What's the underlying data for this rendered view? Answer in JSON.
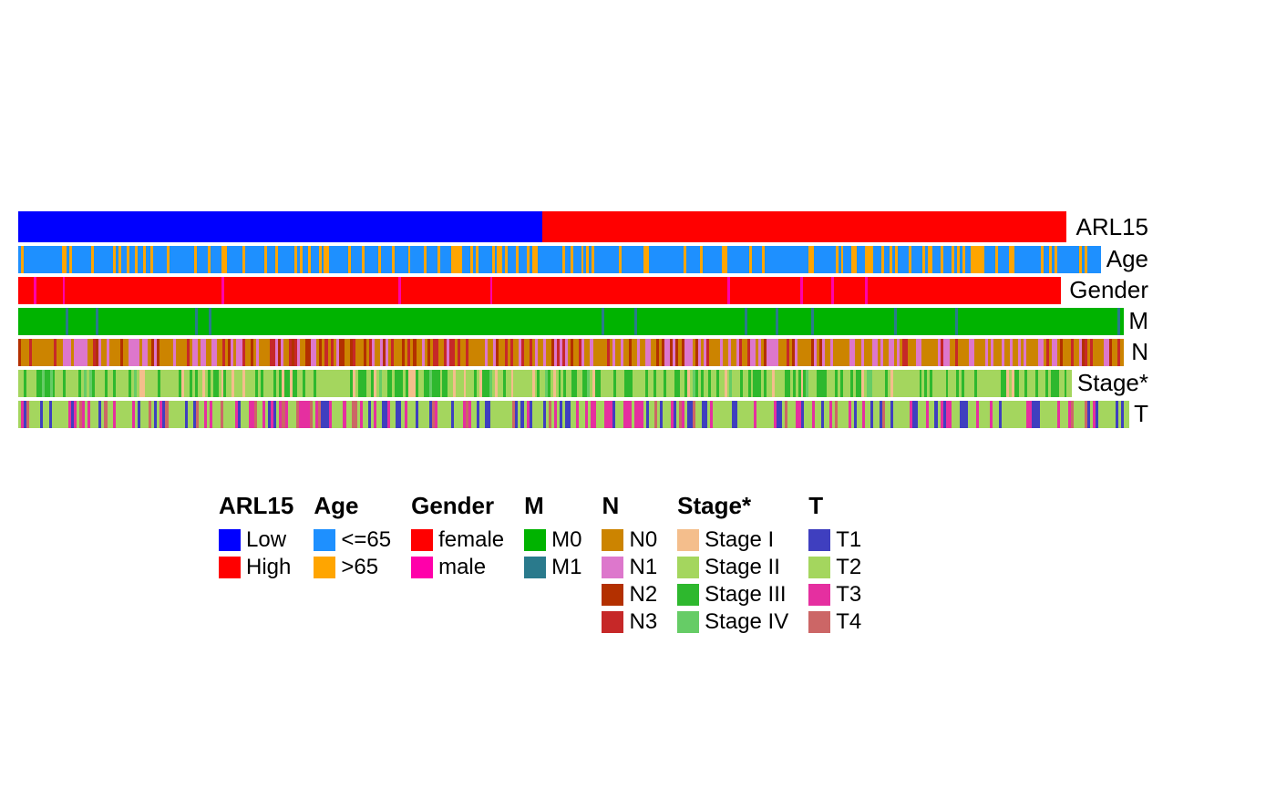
{
  "chart": {
    "type": "heatmap-annotation",
    "n_samples": 400,
    "background_color": "#ffffff",
    "track_label_fontsize": 26,
    "legend_head_fontsize": 26,
    "legend_label_fontsize": 24,
    "tracks": [
      {
        "key": "ARL15",
        "label": "ARL15",
        "height": "tall",
        "categories": {
          "Low": "#0000ff",
          "High": "#ff0000"
        },
        "pattern": "sorted_half"
      },
      {
        "key": "Age",
        "label": "Age",
        "height": "short",
        "categories": {
          "<=65": "#1e90ff",
          ">65": "#ffa500"
        },
        "probs": [
          0.72,
          0.28
        ]
      },
      {
        "key": "Gender",
        "label": "Gender",
        "height": "short",
        "categories": {
          "female": "#ff0000",
          "male": "#ff00aa"
        },
        "probs": [
          0.97,
          0.03
        ]
      },
      {
        "key": "M",
        "label": "M",
        "height": "short",
        "categories": {
          "M0": "#00b300",
          "M1": "#2a7a8c"
        },
        "probs": [
          0.97,
          0.03
        ]
      },
      {
        "key": "N",
        "label": "N",
        "height": "short",
        "categories": {
          "N0": "#cc8400",
          "N1": "#dd77cc",
          "N2": "#b33000",
          "N3": "#c62828"
        },
        "probs": [
          0.5,
          0.3,
          0.1,
          0.1
        ]
      },
      {
        "key": "Stage",
        "label": "Stage*",
        "height": "short",
        "categories": {
          "Stage I": "#f4be8c",
          "Stage II": "#a4d65e",
          "Stage III": "#2eb82e",
          "Stage IV": "#66cc66"
        },
        "probs": [
          0.06,
          0.6,
          0.3,
          0.04
        ]
      },
      {
        "key": "T",
        "label": "T",
        "height": "short",
        "categories": {
          "T1": "#3f3fbf",
          "T2": "#a4d65e",
          "T3": "#e52fa0",
          "T4": "#cc6666"
        },
        "probs": [
          0.2,
          0.55,
          0.17,
          0.08
        ]
      }
    ],
    "legend": [
      {
        "title": "ARL15",
        "items": [
          {
            "label": "Low",
            "color": "#0000ff"
          },
          {
            "label": "High",
            "color": "#ff0000"
          }
        ]
      },
      {
        "title": "Age",
        "items": [
          {
            "label": "<=65",
            "color": "#1e90ff"
          },
          {
            "label": ">65",
            "color": "#ffa500"
          }
        ]
      },
      {
        "title": "Gender",
        "items": [
          {
            "label": "female",
            "color": "#ff0000"
          },
          {
            "label": "male",
            "color": "#ff00aa"
          }
        ]
      },
      {
        "title": "M",
        "items": [
          {
            "label": "M0",
            "color": "#00b300"
          },
          {
            "label": "M1",
            "color": "#2a7a8c"
          }
        ]
      },
      {
        "title": "N",
        "items": [
          {
            "label": "N0",
            "color": "#cc8400"
          },
          {
            "label": "N1",
            "color": "#dd77cc"
          },
          {
            "label": "N2",
            "color": "#b33000"
          },
          {
            "label": "N3",
            "color": "#c62828"
          }
        ]
      },
      {
        "title": "Stage*",
        "items": [
          {
            "label": "Stage I",
            "color": "#f4be8c"
          },
          {
            "label": "Stage II",
            "color": "#a4d65e"
          },
          {
            "label": "Stage III",
            "color": "#2eb82e"
          },
          {
            "label": "Stage IV",
            "color": "#66cc66"
          }
        ]
      },
      {
        "title": "T",
        "items": [
          {
            "label": "T1",
            "color": "#3f3fbf"
          },
          {
            "label": "T2",
            "color": "#a4d65e"
          },
          {
            "label": "T3",
            "color": "#e52fa0"
          },
          {
            "label": "T4",
            "color": "#cc6666"
          }
        ]
      }
    ]
  }
}
